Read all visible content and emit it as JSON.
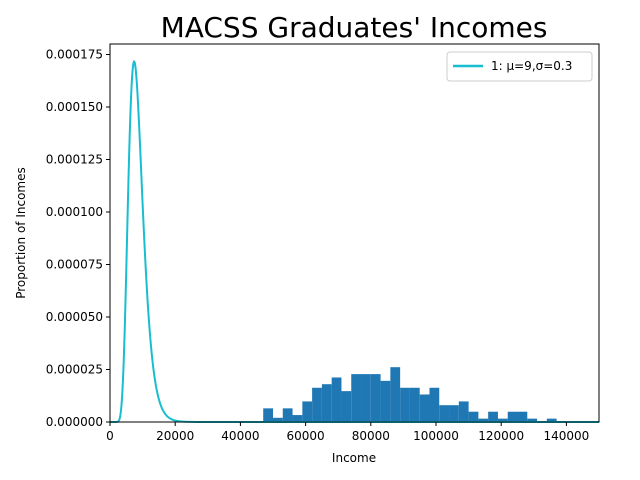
{
  "chart_data": {
    "type": "histogram+line",
    "title": "MACSS Graduates' Incomes",
    "xlabel": "Income",
    "ylabel": "Proportion of Incomes",
    "xlim": [
      0,
      150000
    ],
    "ylim": [
      0,
      0.00018
    ],
    "x_ticks": [
      0,
      20000,
      40000,
      60000,
      80000,
      100000,
      120000,
      140000
    ],
    "x_tick_labels": [
      "0",
      "20000",
      "40000",
      "60000",
      "80000",
      "100000",
      "120000",
      "140000"
    ],
    "y_ticks": [
      0,
      2.5e-05,
      5e-05,
      7.5e-05,
      0.0001,
      0.000125,
      0.00015,
      0.000175
    ],
    "y_tick_labels": [
      "0.000000",
      "0.000025",
      "0.000050",
      "0.000075",
      "0.000100",
      "0.000125",
      "0.000150",
      "0.000175"
    ],
    "grid": false,
    "legend_position": "upper-right",
    "histogram": {
      "color": "#1f77b4",
      "bins": [
        {
          "x0": 47000,
          "x1": 50000,
          "value": 6.5e-06
        },
        {
          "x0": 50000,
          "x1": 53000,
          "value": 2e-06
        },
        {
          "x0": 53000,
          "x1": 56000,
          "value": 6.5e-06
        },
        {
          "x0": 56000,
          "x1": 59000,
          "value": 3.3e-06
        },
        {
          "x0": 59000,
          "x1": 62000,
          "value": 9.8e-06
        },
        {
          "x0": 62000,
          "x1": 65000,
          "value": 1.63e-05
        },
        {
          "x0": 65000,
          "x1": 68000,
          "value": 1.8e-05
        },
        {
          "x0": 68000,
          "x1": 71000,
          "value": 2.12e-05
        },
        {
          "x0": 71000,
          "x1": 74000,
          "value": 1.47e-05
        },
        {
          "x0": 74000,
          "x1": 77000,
          "value": 2.28e-05
        },
        {
          "x0": 77000,
          "x1": 80000,
          "value": 2.28e-05
        },
        {
          "x0": 80000,
          "x1": 83000,
          "value": 2.28e-05
        },
        {
          "x0": 83000,
          "x1": 86000,
          "value": 1.96e-05
        },
        {
          "x0": 86000,
          "x1": 89000,
          "value": 2.61e-05
        },
        {
          "x0": 89000,
          "x1": 92000,
          "value": 1.63e-05
        },
        {
          "x0": 92000,
          "x1": 95000,
          "value": 1.63e-05
        },
        {
          "x0": 95000,
          "x1": 98000,
          "value": 1.31e-05
        },
        {
          "x0": 98000,
          "x1": 101000,
          "value": 1.63e-05
        },
        {
          "x0": 101000,
          "x1": 104000,
          "value": 8e-06
        },
        {
          "x0": 104000,
          "x1": 107000,
          "value": 8e-06
        },
        {
          "x0": 107000,
          "x1": 110000,
          "value": 9.8e-06
        },
        {
          "x0": 110000,
          "x1": 113000,
          "value": 4.9e-06
        },
        {
          "x0": 113000,
          "x1": 116000,
          "value": 1.6e-06
        },
        {
          "x0": 116000,
          "x1": 119000,
          "value": 4.9e-06
        },
        {
          "x0": 119000,
          "x1": 122000,
          "value": 1.6e-06
        },
        {
          "x0": 122000,
          "x1": 125000,
          "value": 4.9e-06
        },
        {
          "x0": 125000,
          "x1": 128000,
          "value": 4.9e-06
        },
        {
          "x0": 128000,
          "x1": 131000,
          "value": 1.6e-06
        },
        {
          "x0": 131000,
          "x1": 134000,
          "value": 5e-07
        },
        {
          "x0": 134000,
          "x1": 137000,
          "value": 1.6e-06
        }
      ]
    },
    "series": [
      {
        "name": "1: μ=9,σ=0.3",
        "kind": "lognormal_pdf",
        "mu": 9,
        "sigma": 0.3,
        "color": "#17becf"
      }
    ]
  }
}
